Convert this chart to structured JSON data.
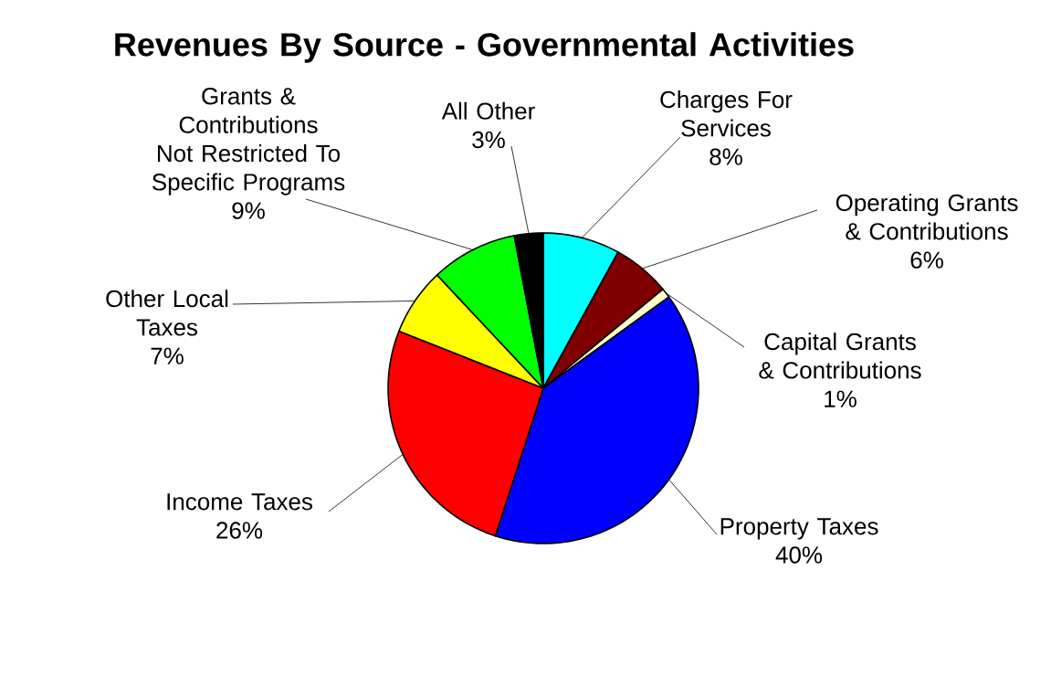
{
  "chart_data": {
    "type": "pie",
    "title": "Revenues By Source - Governmental Activities",
    "categories": [
      "Charges For Services",
      "Operating Grants & Contributions",
      "Capital Grants & Contributions",
      "Property Taxes",
      "Income Taxes",
      "Other Local Taxes",
      "Grants & Contributions Not Restricted To Specific Programs",
      "All Other"
    ],
    "values": [
      8,
      6,
      1,
      40,
      26,
      7,
      9,
      3
    ],
    "value_labels": [
      "8%",
      "6%",
      "1%",
      "40%",
      "26%",
      "7%",
      "9%",
      "3%"
    ],
    "colors": [
      "#00ffff",
      "#800000",
      "#ffffcc",
      "#0000ff",
      "#ff0000",
      "#ffff00",
      "#00ff00",
      "#000000"
    ]
  }
}
